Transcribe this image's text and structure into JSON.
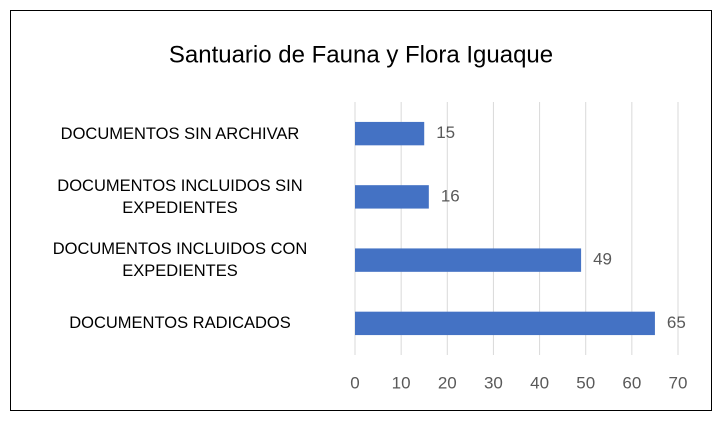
{
  "chart_data": {
    "type": "barh",
    "title": "Santuario de Fauna y Flora Iguaque",
    "categories": [
      "DOCUMENTOS SIN ARCHIVAR",
      "DOCUMENTOS INCLUIDOS SIN EXPEDIENTES",
      "DOCUMENTOS INCLUIDOS CON EXPEDIENTES",
      "DOCUMENTOS RADICADOS"
    ],
    "values": [
      15,
      16,
      49,
      65
    ],
    "color": "#4472c4",
    "xlim": [
      0,
      70
    ],
    "xticks": [
      0,
      10,
      20,
      30,
      40,
      50,
      60,
      70
    ],
    "grid": true
  }
}
